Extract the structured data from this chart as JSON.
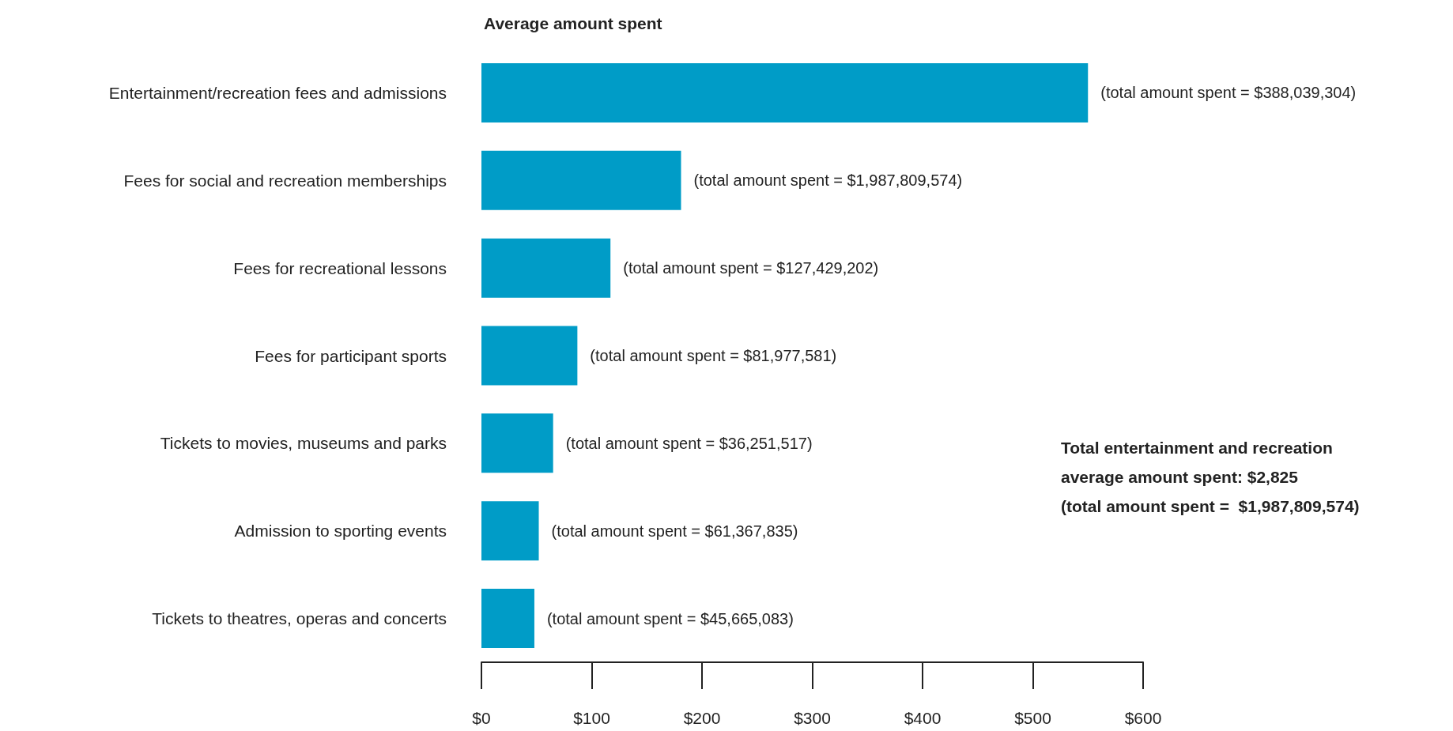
{
  "chart_data": {
    "type": "bar",
    "orientation": "horizontal",
    "title": "Average amount spent",
    "categories": [
      "Entertainment/recreation fees and admissions",
      "Fees for social and recreation memberships",
      "Fees for recreational lessons",
      "Fees for participant sports",
      "Tickets to movies, museums and parks",
      "Admission to sporting events",
      "Tickets to theatres, operas and concerts"
    ],
    "values": [
      550,
      181,
      117,
      87,
      65,
      52,
      48
    ],
    "color": "#009cc7",
    "xlim": [
      0,
      600
    ],
    "xticks": [
      {
        "value": 0,
        "label": "$0"
      },
      {
        "value": 100,
        "label": "$100"
      },
      {
        "value": 200,
        "label": "$200"
      },
      {
        "value": 300,
        "label": "$300"
      },
      {
        "value": 400,
        "label": "$400"
      },
      {
        "value": 500,
        "label": "$500"
      },
      {
        "value": 600,
        "label": "$600"
      }
    ],
    "grid": false,
    "annotations": [
      {
        "text": "(total amount spent = $388,039,304)",
        "x": 550,
        "y": "Entertainment/recreation fees and admissions"
      },
      {
        "text": "(total amount spent = $1,987,809,574)",
        "x": 181,
        "y": "Fees for social and recreation memberships"
      },
      {
        "text": "(total amount spent = $127,429,202)",
        "x": 117,
        "y": "Fees for recreational lessons"
      },
      {
        "text": "(total amount spent = $81,977,581)",
        "x": 87,
        "y": "Fees for participant sports"
      },
      {
        "text": "(total amount spent = $36,251,517)",
        "x": 65,
        "y": "Tickets to movies, museums and parks"
      },
      {
        "text": "(total amount spent = $61,367,835)",
        "x": 52,
        "y": "Admission to sporting events"
      },
      {
        "text": "(total amount spent = $45,665,083)",
        "x": 48,
        "y": "Tickets to theatres, operas and concerts"
      },
      "Total entertainment and recreation",
      "average amount spent: $2,825",
      "(total amount spent =  $1,987,809,574)"
    ]
  }
}
